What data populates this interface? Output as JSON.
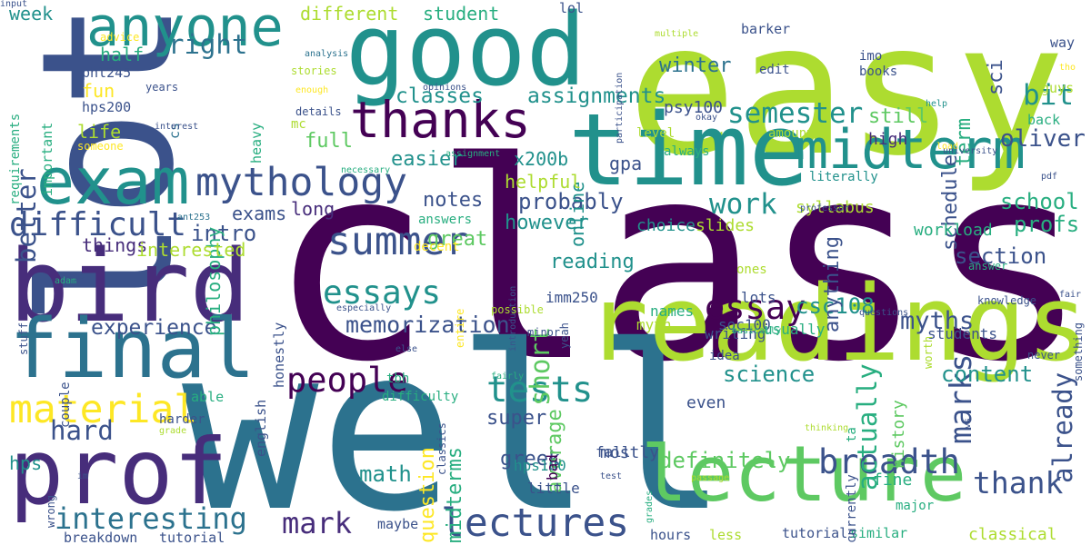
{
  "palette": {
    "c1": "#440154",
    "c2": "#472d7b",
    "c3": "#3b528b",
    "c4": "#2c728e",
    "c5": "#21918c",
    "c6": "#28ae80",
    "c7": "#5ec962",
    "c8": "#addc30",
    "c9": "#fde725"
  },
  "words": [
    {
      "text": "class",
      "color": "c1"
    },
    {
      "text": "well",
      "color": "c4"
    },
    {
      "text": "easy",
      "color": "c8"
    },
    {
      "text": "lot",
      "color": "c3"
    },
    {
      "text": "good",
      "color": "c5"
    },
    {
      "text": "time",
      "color": "c5"
    },
    {
      "text": "readings",
      "color": "c8"
    },
    {
      "text": "bird",
      "color": "c2"
    },
    {
      "text": "final",
      "color": "c4"
    },
    {
      "text": "prof",
      "color": "c2"
    },
    {
      "text": "lecture",
      "color": "c7"
    },
    {
      "text": "exam",
      "color": "c5"
    },
    {
      "text": "anyone",
      "color": "c5"
    },
    {
      "text": "midterm",
      "color": "c5"
    },
    {
      "text": "thanks",
      "color": "c1"
    },
    {
      "text": "mythology",
      "color": "c3"
    },
    {
      "text": "summer",
      "color": "c3"
    },
    {
      "text": "material",
      "color": "c9"
    },
    {
      "text": "lectures",
      "color": "c3"
    },
    {
      "text": "difficult",
      "color": "c3"
    },
    {
      "text": "essays",
      "color": "c5"
    },
    {
      "text": "people",
      "color": "c1"
    },
    {
      "text": "essay",
      "color": "c1"
    },
    {
      "text": "tests",
      "color": "c5"
    },
    {
      "text": "breadth",
      "color": "c3"
    },
    {
      "text": "interesting",
      "color": "c4"
    },
    {
      "text": "mark",
      "color": "c2"
    },
    {
      "text": "marks",
      "color": "c3"
    },
    {
      "text": "thank",
      "color": "c3"
    },
    {
      "text": "semester",
      "color": "c5"
    },
    {
      "text": "work",
      "color": "c5"
    },
    {
      "text": "right",
      "color": "c4"
    },
    {
      "text": "bit",
      "color": "c5"
    },
    {
      "text": "better",
      "color": "c3"
    },
    {
      "text": "hard",
      "color": "c3"
    },
    {
      "text": "memorization",
      "color": "c3"
    },
    {
      "text": "classes",
      "color": "c5"
    },
    {
      "text": "assignments",
      "color": "c5"
    },
    {
      "text": "short",
      "color": "c7"
    },
    {
      "text": "actually",
      "color": "c6"
    },
    {
      "text": "already",
      "color": "c3"
    },
    {
      "text": "myths",
      "color": "c3"
    },
    {
      "text": "oliver",
      "color": "c3"
    },
    {
      "text": "probably",
      "color": "c3"
    },
    {
      "text": "experience",
      "color": "c3"
    },
    {
      "text": "content",
      "color": "c5"
    },
    {
      "text": "science",
      "color": "c5"
    },
    {
      "text": "intro",
      "color": "c3"
    },
    {
      "text": "section",
      "color": "c3"
    },
    {
      "text": "profs",
      "color": "c6"
    },
    {
      "text": "school",
      "color": "c6"
    },
    {
      "text": "definitely",
      "color": "c7"
    },
    {
      "text": "math",
      "color": "c5"
    },
    {
      "text": "csc108",
      "color": "c5"
    },
    {
      "text": "winter",
      "color": "c4"
    },
    {
      "text": "still",
      "color": "c7"
    },
    {
      "text": "full",
      "color": "c7"
    },
    {
      "text": "easier",
      "color": "c5"
    },
    {
      "text": "notes",
      "color": "c3"
    },
    {
      "text": "great",
      "color": "c7"
    },
    {
      "text": "however",
      "color": "c5"
    },
    {
      "text": "reading",
      "color": "c5"
    },
    {
      "text": "super",
      "color": "c3"
    },
    {
      "text": "greek",
      "color": "c3"
    },
    {
      "text": "question",
      "color": "c9"
    },
    {
      "text": "midterms",
      "color": "c6"
    },
    {
      "text": "average",
      "color": "c7"
    },
    {
      "text": "anything",
      "color": "c3"
    },
    {
      "text": "schedule",
      "color": "c3"
    },
    {
      "text": "term",
      "color": "c6"
    },
    {
      "text": "sci",
      "color": "c3"
    },
    {
      "text": "different",
      "color": "c8"
    },
    {
      "text": "student",
      "color": "c6"
    },
    {
      "text": "week",
      "color": "c5"
    },
    {
      "text": "long",
      "color": "c2"
    },
    {
      "text": "half",
      "color": "c6"
    },
    {
      "text": "fun",
      "color": "c9"
    },
    {
      "text": "life",
      "color": "c8"
    },
    {
      "text": "phl245",
      "color": "c3"
    },
    {
      "text": "hps200",
      "color": "c3"
    },
    {
      "text": "philosophy",
      "color": "c6"
    },
    {
      "text": "exams",
      "color": "c3"
    },
    {
      "text": "things",
      "color": "c2"
    },
    {
      "text": "interested",
      "color": "c8"
    },
    {
      "text": "hps",
      "color": "c5"
    },
    {
      "text": "online",
      "color": "c5"
    },
    {
      "text": "x200b",
      "color": "c5"
    },
    {
      "text": "gpa",
      "color": "c3"
    },
    {
      "text": "helpful",
      "color": "c8"
    },
    {
      "text": "psy100",
      "color": "c3"
    },
    {
      "text": "high",
      "color": "c2"
    },
    {
      "text": "history",
      "color": "c7"
    },
    {
      "text": "fine",
      "color": "c6"
    },
    {
      "text": "even",
      "color": "c3"
    },
    {
      "text": "mostly",
      "color": "c3"
    },
    {
      "text": "choice",
      "color": "c5"
    },
    {
      "text": "syllabus",
      "color": "c8"
    },
    {
      "text": "slides",
      "color": "c8"
    },
    {
      "text": "workload",
      "color": "c6"
    },
    {
      "text": "lots",
      "color": "c3"
    },
    {
      "text": "writing",
      "color": "c3"
    },
    {
      "text": "names",
      "color": "c6"
    },
    {
      "text": "myth",
      "color": "c8"
    },
    {
      "text": "soc100",
      "color": "c3"
    },
    {
      "text": "usually",
      "color": "c6"
    },
    {
      "text": "students",
      "color": "c3"
    },
    {
      "text": "imm250",
      "color": "c3"
    },
    {
      "text": "hps100",
      "color": "c5"
    },
    {
      "text": "bad",
      "color": "c1"
    },
    {
      "text": "fall",
      "color": "c3"
    },
    {
      "text": "little",
      "color": "c3"
    },
    {
      "text": "maybe",
      "color": "c3"
    },
    {
      "text": "classical",
      "color": "c8"
    },
    {
      "text": "tutorials",
      "color": "c3"
    },
    {
      "text": "similar",
      "color": "c6"
    },
    {
      "text": "hours",
      "color": "c3"
    },
    {
      "text": "less",
      "color": "c8"
    },
    {
      "text": "breakdown",
      "color": "c3"
    },
    {
      "text": "tutorial",
      "color": "c3"
    },
    {
      "text": "able",
      "color": "c6"
    },
    {
      "text": "english",
      "color": "c3"
    },
    {
      "text": "honestly",
      "color": "c3"
    },
    {
      "text": "heavy",
      "color": "c6"
    },
    {
      "text": "cs",
      "color": "c4"
    },
    {
      "text": "important",
      "color": "c6"
    },
    {
      "text": "requirements",
      "color": "c6"
    },
    {
      "text": "lol",
      "color": "c3"
    },
    {
      "text": "barker",
      "color": "c3"
    },
    {
      "text": "edit",
      "color": "c3"
    },
    {
      "text": "imo",
      "color": "c3"
    },
    {
      "text": "books",
      "color": "c3"
    },
    {
      "text": "way",
      "color": "c3"
    },
    {
      "text": "guys",
      "color": "c8"
    },
    {
      "text": "back",
      "color": "c6"
    },
    {
      "text": "amount",
      "color": "c8"
    },
    {
      "text": "literally",
      "color": "c5"
    },
    {
      "text": "level",
      "color": "c8"
    },
    {
      "text": "always",
      "color": "c6"
    },
    {
      "text": "mc",
      "color": "c8"
    },
    {
      "text": "details",
      "color": "c3"
    },
    {
      "text": "stories",
      "color": "c8"
    },
    {
      "text": "years",
      "color": "c3"
    },
    {
      "text": "advice",
      "color": "c9"
    },
    {
      "text": "analysis",
      "color": "c4"
    },
    {
      "text": "enough",
      "color": "c9"
    },
    {
      "text": "opinions",
      "color": "c3"
    },
    {
      "text": "participation",
      "color": "c3"
    },
    {
      "text": "multiple",
      "color": "c8"
    },
    {
      "text": "tho",
      "color": "c9"
    },
    {
      "text": "help",
      "color": "c5"
    },
    {
      "text": "load",
      "color": "c9"
    },
    {
      "text": "okay",
      "color": "c3"
    },
    {
      "text": "pdf",
      "color": "c3"
    },
    {
      "text": "university",
      "color": "c3"
    },
    {
      "text": "assignment",
      "color": "c6"
    },
    {
      "text": "interest",
      "color": "c3"
    },
    {
      "text": "necessary",
      "color": "c6"
    },
    {
      "text": "someone",
      "color": "c9"
    },
    {
      "text": "ant253",
      "color": "c4"
    },
    {
      "text": "professor",
      "color": "c3"
    },
    {
      "text": "decent",
      "color": "c9"
    },
    {
      "text": "answers",
      "color": "c6"
    },
    {
      "text": "answer",
      "color": "c6"
    },
    {
      "text": "fair",
      "color": "c3"
    },
    {
      "text": "adam",
      "color": "c6"
    },
    {
      "text": "ago",
      "color": "c3"
    },
    {
      "text": "stuff",
      "color": "c3"
    },
    {
      "text": "especially",
      "color": "c3"
    },
    {
      "text": "entire",
      "color": "c9"
    },
    {
      "text": "introduction",
      "color": "c3"
    },
    {
      "text": "possible",
      "color": "c8"
    },
    {
      "text": "minor",
      "color": "c3"
    },
    {
      "text": "yeah",
      "color": "c3"
    },
    {
      "text": "basically",
      "color": "c6"
    },
    {
      "text": "idea",
      "color": "c3"
    },
    {
      "text": "ones",
      "color": "c8"
    },
    {
      "text": "worth",
      "color": "c8"
    },
    {
      "text": "knowledge",
      "color": "c3"
    },
    {
      "text": "never",
      "color": "c3"
    },
    {
      "text": "something",
      "color": "c3"
    },
    {
      "text": "questions",
      "color": "c3"
    },
    {
      "text": "else",
      "color": "c3"
    },
    {
      "text": "couple",
      "color": "c3"
    },
    {
      "text": "tbh",
      "color": "c6"
    },
    {
      "text": "fairly",
      "color": "c6"
    },
    {
      "text": "difficulty",
      "color": "c6"
    },
    {
      "text": "classics",
      "color": "c3"
    },
    {
      "text": "harder",
      "color": "c3"
    },
    {
      "text": "grade",
      "color": "c8"
    },
    {
      "text": "im",
      "color": "c3"
    },
    {
      "text": "wrong",
      "color": "c3"
    },
    {
      "text": "test",
      "color": "c3"
    },
    {
      "text": "grades",
      "color": "c6"
    },
    {
      "text": "passage",
      "color": "c8"
    },
    {
      "text": "thinking",
      "color": "c8"
    },
    {
      "text": "ta",
      "color": "c6"
    },
    {
      "text": "currently",
      "color": "c3"
    },
    {
      "text": "major",
      "color": "c6"
    },
    {
      "text": "vs",
      "color": "c3"
    },
    {
      "text": "input",
      "color": "c3"
    }
  ]
}
